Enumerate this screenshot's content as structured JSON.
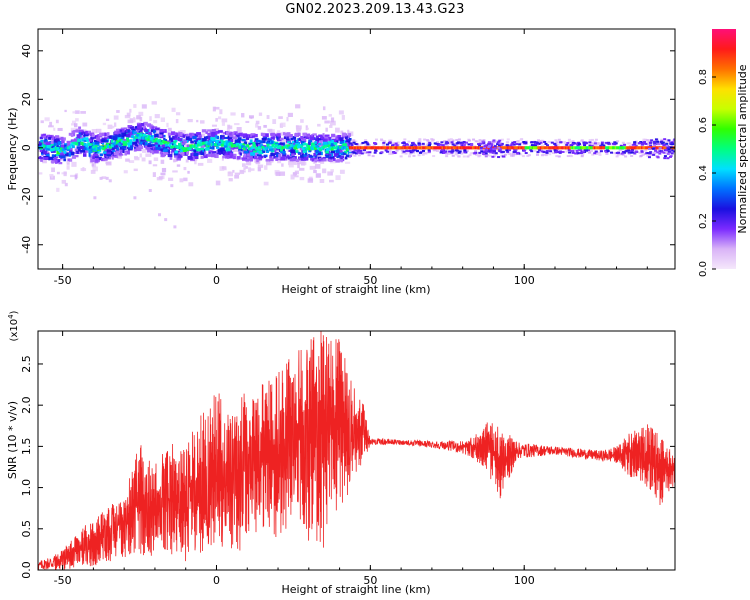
{
  "figure": {
    "title": "GN02.2023.209.13.43.G23"
  },
  "chart_data": [
    {
      "type": "heatmap",
      "panel": "spectrogram",
      "xlabel": "Height of straight line (km)",
      "ylabel": "Frequency (Hz)",
      "xlim": [
        -58,
        149
      ],
      "ylim": [
        -50,
        49
      ],
      "x_ticks": [
        -50,
        0,
        50,
        100
      ],
      "y_ticks": [
        -40,
        -20,
        0,
        20,
        40
      ],
      "colorbar": {
        "label": "Normalized spectral amplitude",
        "range": [
          0,
          1
        ],
        "ticks": [
          0.0,
          0.2,
          0.4,
          0.6,
          0.8
        ],
        "colormap": [
          "#f5e8fb",
          "#d9b3f7",
          "#7b2bff",
          "#1a10e0",
          "#0070ff",
          "#00e0ff",
          "#00ff80",
          "#30ff00",
          "#c8ff00",
          "#ffe000",
          "#ff7000",
          "#ff1a1a",
          "#ff0f78"
        ]
      },
      "centerline_frequency_hz": [
        {
          "x": -58,
          "y": 0.5
        },
        {
          "x": -50,
          "y": -1.5
        },
        {
          "x": -45,
          "y": 3
        },
        {
          "x": -40,
          "y": -0.5
        },
        {
          "x": -35,
          "y": 1
        },
        {
          "x": -30,
          "y": 3
        },
        {
          "x": -25,
          "y": 5
        },
        {
          "x": -20,
          "y": 3
        },
        {
          "x": -15,
          "y": 1
        },
        {
          "x": -10,
          "y": 0
        },
        {
          "x": -5,
          "y": 1.5
        },
        {
          "x": 0,
          "y": 2
        },
        {
          "x": 5,
          "y": 1
        },
        {
          "x": 10,
          "y": 0
        },
        {
          "x": 20,
          "y": 0.5
        },
        {
          "x": 30,
          "y": 0
        },
        {
          "x": 43,
          "y": 0
        },
        {
          "x": 149,
          "y": 0
        }
      ]
    },
    {
      "type": "line",
      "panel": "snr",
      "xlabel": "Height of straight line (km)",
      "ylabel": "SNR (10 * v/v)",
      "y_multiplier": "(x10",
      "y_multiplier_exp": "4",
      "y_multiplier_close": ")",
      "xlim": [
        -58,
        149
      ],
      "ylim": [
        0,
        2.9
      ],
      "x_ticks": [
        -50,
        0,
        50,
        100
      ],
      "y_ticks": [
        0.0,
        0.5,
        1.0,
        1.5,
        2.0,
        2.5
      ],
      "color": "#ee2222",
      "series": [
        {
          "envelope": [
            {
              "x": -58,
              "lo": 0.0,
              "hi": 0.1
            },
            {
              "x": -50,
              "lo": 0.0,
              "hi": 0.25
            },
            {
              "x": -40,
              "lo": 0.05,
              "hi": 0.65
            },
            {
              "x": -30,
              "lo": 0.15,
              "hi": 0.9
            },
            {
              "x": -25,
              "lo": 0.2,
              "hi": 1.55
            },
            {
              "x": -20,
              "lo": 0.1,
              "hi": 1.3
            },
            {
              "x": -15,
              "lo": 0.2,
              "hi": 1.6
            },
            {
              "x": -10,
              "lo": 0.1,
              "hi": 1.5
            },
            {
              "x": -5,
              "lo": 0.2,
              "hi": 1.9
            },
            {
              "x": 0,
              "lo": 0.3,
              "hi": 2.2
            },
            {
              "x": 5,
              "lo": 0.0,
              "hi": 2.0
            },
            {
              "x": 10,
              "lo": 0.4,
              "hi": 2.2
            },
            {
              "x": 15,
              "lo": 0.5,
              "hi": 2.3
            },
            {
              "x": 20,
              "lo": 0.3,
              "hi": 2.5
            },
            {
              "x": 25,
              "lo": 0.6,
              "hi": 2.6
            },
            {
              "x": 30,
              "lo": 0.3,
              "hi": 2.9
            },
            {
              "x": 35,
              "lo": 0.2,
              "hi": 2.9
            },
            {
              "x": 40,
              "lo": 0.7,
              "hi": 2.8
            },
            {
              "x": 45,
              "lo": 1.1,
              "hi": 2.2
            },
            {
              "x": 48,
              "lo": 1.3,
              "hi": 2.0
            },
            {
              "x": 50,
              "lo": 1.52,
              "hi": 1.6
            },
            {
              "x": 60,
              "lo": 1.52,
              "hi": 1.58
            },
            {
              "x": 75,
              "lo": 1.46,
              "hi": 1.56
            },
            {
              "x": 82,
              "lo": 1.38,
              "hi": 1.58
            },
            {
              "x": 88,
              "lo": 1.2,
              "hi": 1.8
            },
            {
              "x": 92,
              "lo": 0.85,
              "hi": 1.75
            },
            {
              "x": 98,
              "lo": 1.35,
              "hi": 1.55
            },
            {
              "x": 110,
              "lo": 1.4,
              "hi": 1.5
            },
            {
              "x": 125,
              "lo": 1.32,
              "hi": 1.45
            },
            {
              "x": 130,
              "lo": 1.3,
              "hi": 1.5
            },
            {
              "x": 135,
              "lo": 1.1,
              "hi": 1.7
            },
            {
              "x": 140,
              "lo": 0.95,
              "hi": 1.8
            },
            {
              "x": 145,
              "lo": 0.75,
              "hi": 1.6
            },
            {
              "x": 149,
              "lo": 1.05,
              "hi": 1.4
            }
          ]
        }
      ]
    }
  ]
}
